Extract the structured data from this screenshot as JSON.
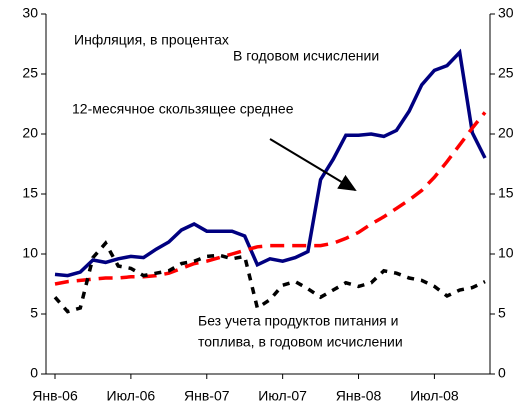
{
  "chart_data": {
    "type": "line",
    "annotations": [
      "Инфляция, в процентах",
      "В годовом исчислении",
      "12-месячное скользящее среднее",
      "Без учета продуктов питания и",
      "топлива, в годовом исчислении"
    ],
    "categories": [
      "Янв-06",
      null,
      null,
      null,
      null,
      null,
      "Июл-06",
      null,
      null,
      null,
      null,
      null,
      "Янв-07",
      null,
      null,
      null,
      null,
      null,
      "Июл-07",
      null,
      null,
      null,
      null,
      null,
      "Янв-08",
      null,
      null,
      null,
      null,
      null,
      "Июл-08",
      null,
      null,
      null,
      null
    ],
    "series": [
      {
        "color": "#000080",
        "dash": "solid",
        "values": [
          8.3,
          8.2,
          8.5,
          9.5,
          9.3,
          9.6,
          9.8,
          9.7,
          10.4,
          11.0,
          12.0,
          12.5,
          11.9,
          11.9,
          11.9,
          11.5,
          9.1,
          9.6,
          9.4,
          9.7,
          10.2,
          16.2,
          17.9,
          19.9,
          19.9,
          20.0,
          19.8,
          20.3,
          21.9,
          24.1,
          25.3,
          25.7,
          26.8,
          20.1,
          18.0
        ]
      },
      {
        "color": "#ff0000",
        "dash": "long",
        "values": [
          7.5,
          7.7,
          7.8,
          7.9,
          8.0,
          8.0,
          8.1,
          8.1,
          8.2,
          8.4,
          8.8,
          9.2,
          9.4,
          9.7,
          10.0,
          10.3,
          10.6,
          10.7,
          10.7,
          10.7,
          10.7,
          10.7,
          10.9,
          11.3,
          11.8,
          12.5,
          13.1,
          13.8,
          14.5,
          15.3,
          16.4,
          17.7,
          19.1,
          20.5,
          21.8
        ]
      },
      {
        "color": "#000000",
        "dash": "short",
        "values": [
          6.4,
          5.2,
          5.5,
          9.7,
          10.9,
          9.0,
          8.8,
          8.2,
          8.4,
          8.6,
          9.2,
          9.4,
          9.8,
          9.9,
          9.6,
          9.8,
          5.5,
          6.2,
          7.4,
          7.7,
          7.1,
          6.4,
          7.0,
          7.6,
          7.3,
          7.6,
          8.6,
          8.4,
          8.0,
          7.8,
          7.3,
          6.5,
          7.0,
          7.2,
          7.7
        ]
      }
    ],
    "ylim": [
      0,
      30
    ],
    "yticks": [
      0,
      5,
      10,
      15,
      20,
      25,
      30
    ],
    "y2lim": [
      0,
      30
    ],
    "y2ticks": [
      0,
      5,
      10,
      15,
      20,
      25,
      30
    ],
    "grid": false
  }
}
